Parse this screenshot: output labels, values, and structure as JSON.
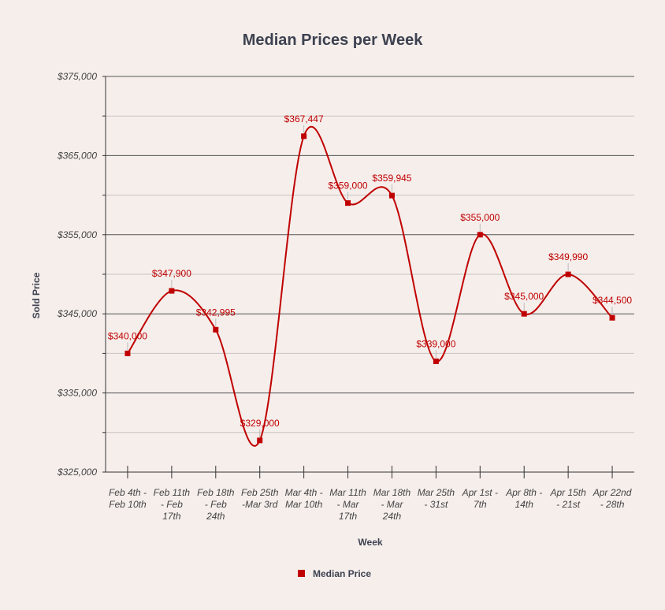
{
  "chart_data": {
    "type": "line",
    "title": "Median Prices per Week",
    "xlabel": "Week",
    "ylabel": "Sold Price",
    "ylim": [
      325000,
      375000
    ],
    "yticks": [
      "$325,000",
      "$335,000",
      "$345,000",
      "$355,000",
      "$365,000",
      "$375,000"
    ],
    "ytick_values": [
      325000,
      335000,
      345000,
      355000,
      365000,
      375000
    ],
    "categories": [
      "Feb 4th - Feb 10th",
      "Feb 11th - Feb 17th",
      "Feb 18th - Feb 24th",
      "Feb 25th -Mar 3rd",
      "Mar 4th - Mar 10th",
      "Mar 11th - Mar 17th",
      "Mar 18th - Mar 24th",
      "Mar 25th - 31st",
      "Apr 1st - 7th",
      "Apr 8th - 14th",
      "Apr 15th - 21st",
      "Apr 22nd - 28th"
    ],
    "category_lines": [
      [
        "Feb 4th -",
        "Feb 10th"
      ],
      [
        "Feb 11th",
        "- Feb",
        "17th"
      ],
      [
        "Feb 18th",
        "- Feb",
        "24th"
      ],
      [
        "Feb 25th",
        "-Mar 3rd"
      ],
      [
        "Mar 4th -",
        "Mar 10th"
      ],
      [
        "Mar 11th",
        "- Mar",
        "17th"
      ],
      [
        "Mar 18th",
        "- Mar",
        "24th"
      ],
      [
        "Mar 25th",
        "- 31st"
      ],
      [
        "Apr 1st -",
        "7th"
      ],
      [
        "Apr 8th -",
        "14th"
      ],
      [
        "Apr 15th",
        "- 21st"
      ],
      [
        "Apr 22nd",
        "- 28th"
      ]
    ],
    "series": [
      {
        "name": "Median Price",
        "values": [
          340000,
          347900,
          342995,
          329000,
          367447,
          359000,
          359945,
          339000,
          355000,
          345000,
          349990,
          344500
        ],
        "labels": [
          "$340,000",
          "$347,900",
          "$342,995",
          "$329,000",
          "$367,447",
          "$359,000",
          "$359,945",
          "$339,000",
          "$355,000",
          "$345,000",
          "$349,990",
          "$344,500"
        ],
        "color": "#c00000"
      }
    ],
    "grid": true,
    "legend": "bottom"
  }
}
